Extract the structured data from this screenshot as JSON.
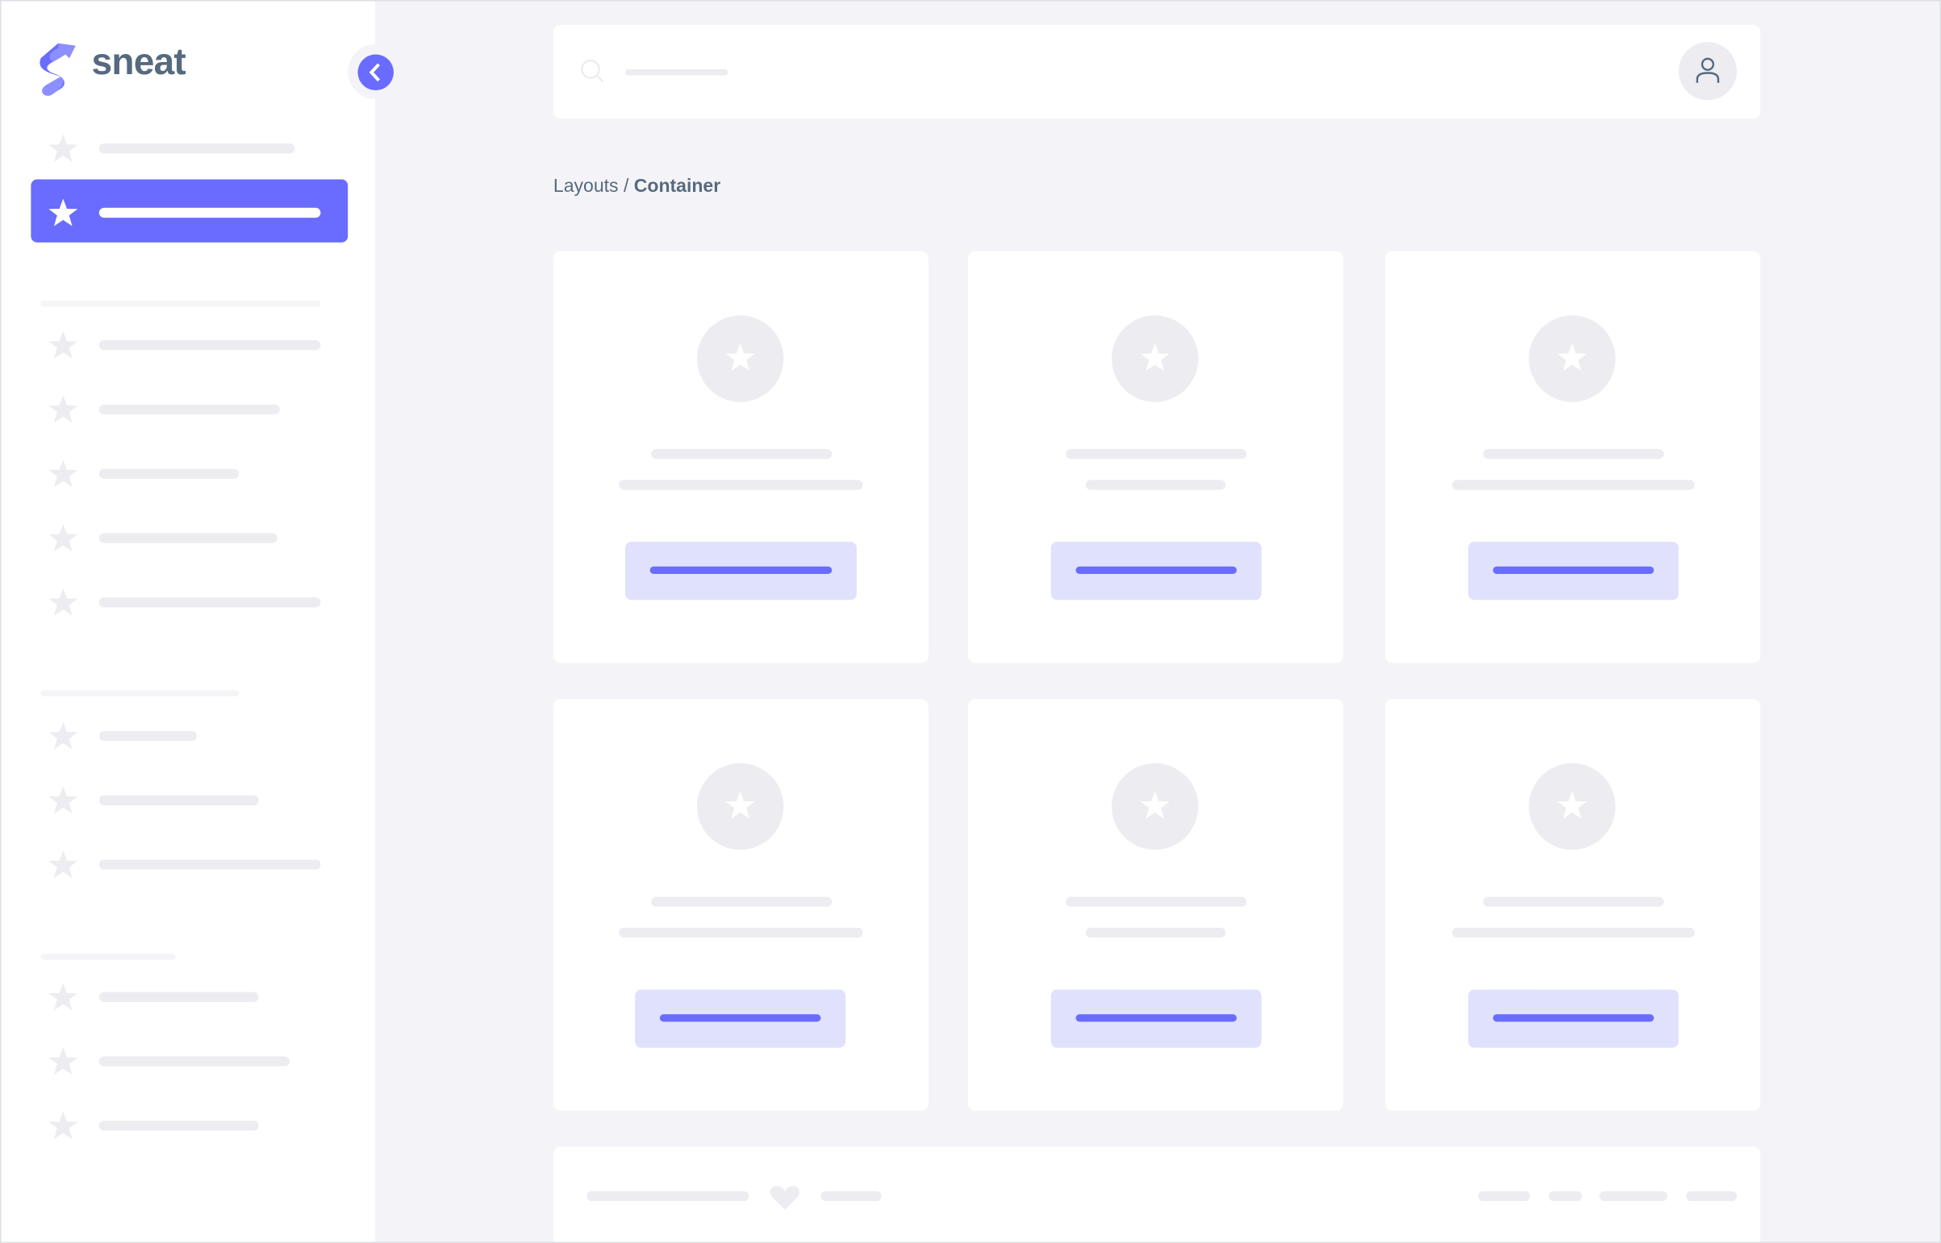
{
  "brand": {
    "name": "sneat",
    "accent": "#696cff",
    "text_color": "#566a7f"
  },
  "sidebar": {
    "collapse_icon": "chevron-left-icon",
    "item_icon": "star-icon",
    "active_index": 1
  },
  "navbar": {
    "search_icon": "search-icon",
    "avatar_icon": "user-icon"
  },
  "breadcrumb": {
    "parent": "Layouts",
    "separator": " / ",
    "current": "Container"
  },
  "cards": {
    "count": 6,
    "icon": "star-icon"
  },
  "footer": {
    "icon": "heart-icon"
  },
  "colors": {
    "background": "#f4f4f8",
    "placeholder": "#ededf1",
    "button_bg": "#e0e1fc"
  }
}
